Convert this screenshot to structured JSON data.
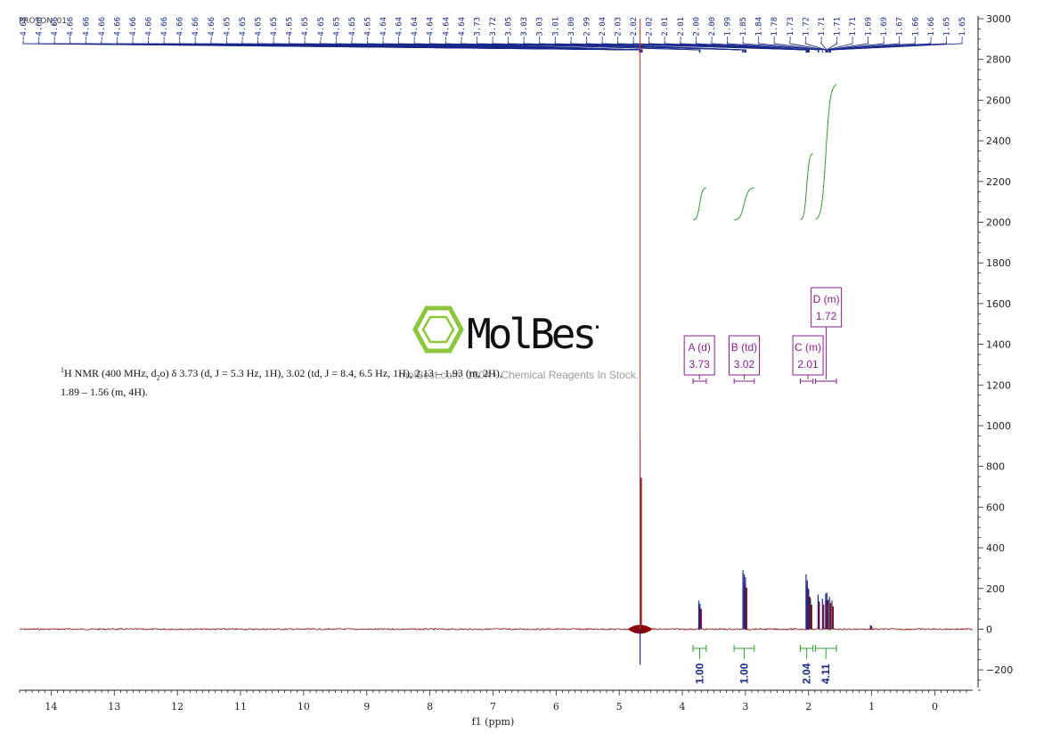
{
  "spectrum_label": "PROTON_01",
  "description": {
    "prefix": "H NMR (400 MHz, d",
    "nucleus_sup": "1",
    "solvent_sub": "2",
    "rest_line1": "o) δ 3.73 (d, J = 5.3 Hz, 1H), 3.02 (td, J = 8.4, 6.5 Hz, 1H), 2.13 – 1.93 (m, 2H),",
    "line2": "1.89 – 1.56 (m, 4H)."
  },
  "watermark": {
    "brand": "MolBest",
    "tagline": "molBest.com, 180K+ Chemical Reagents In Stock.",
    "color": "#8cc63f"
  },
  "chart_data": {
    "type": "line",
    "xlabel": "f1 (ppm)",
    "x_reversed": true,
    "xlim": [
      14.5,
      -0.6
    ],
    "ylim": [
      -300,
      3000
    ],
    "x_ticks": [
      14,
      13,
      12,
      11,
      10,
      9,
      8,
      7,
      6,
      5,
      4,
      3,
      2,
      1,
      0
    ],
    "y_ticks": [
      -200,
      0,
      200,
      400,
      600,
      800,
      1000,
      1200,
      1400,
      1600,
      1800,
      2000,
      2200,
      2400,
      2600,
      2800,
      3000
    ],
    "colors": {
      "spectrum": "#8b0000",
      "peaks": "#1a2a8a",
      "integral": "#2ca02c",
      "multiplet": "#8a1f8f",
      "solvent_line": "#c0392b"
    },
    "solvent_peak_ppm": 4.67,
    "peaks": [
      {
        "ppm": 4.67,
        "height": 930
      },
      {
        "ppm": 3.74,
        "height": 140
      },
      {
        "ppm": 3.72,
        "height": 125
      },
      {
        "ppm": 3.04,
        "height": 290
      },
      {
        "ppm": 3.02,
        "height": 270
      },
      {
        "ppm": 3.0,
        "height": 255
      },
      {
        "ppm": 2.04,
        "height": 270
      },
      {
        "ppm": 2.02,
        "height": 240
      },
      {
        "ppm": 2.0,
        "height": 200
      },
      {
        "ppm": 1.97,
        "height": 150
      },
      {
        "ppm": 1.85,
        "height": 170
      },
      {
        "ppm": 1.78,
        "height": 150
      },
      {
        "ppm": 1.73,
        "height": 175
      },
      {
        "ppm": 1.71,
        "height": 180
      },
      {
        "ppm": 1.67,
        "height": 160
      },
      {
        "ppm": 1.63,
        "height": 140
      },
      {
        "ppm": 1.02,
        "height": 20
      }
    ],
    "peak_labels": [
      "4.68",
      "4.68",
      "4.66",
      "4.66",
      "4.66",
      "4.66",
      "4.66",
      "4.66",
      "4.66",
      "4.66",
      "4.66",
      "4.66",
      "4.66",
      "4.65",
      "4.65",
      "4.65",
      "4.65",
      "4.65",
      "4.65",
      "4.65",
      "4.65",
      "4.65",
      "4.65",
      "4.64",
      "4.64",
      "4.64",
      "4.64",
      "4.64",
      "4.64",
      "3.73",
      "3.72",
      "3.05",
      "3.03",
      "3.03",
      "3.01",
      "3.00",
      "2.99",
      "2.04",
      "2.03",
      "2.02",
      "2.02",
      "2.01",
      "2.01",
      "2.00",
      "2.00",
      "1.99",
      "1.85",
      "1.84",
      "1.78",
      "1.73",
      "1.72",
      "1.71",
      "1.71",
      "1.71",
      "1.69",
      "1.69",
      "1.67",
      "1.66",
      "1.66",
      "1.65",
      "1.65"
    ],
    "multiplets": [
      {
        "name": "A (d)",
        "shift": "3.73",
        "ppm": 3.73,
        "range": [
          3.83,
          3.62
        ]
      },
      {
        "name": "B (td)",
        "shift": "3.02",
        "ppm": 3.02,
        "range": [
          3.18,
          2.86
        ]
      },
      {
        "name": "C (m)",
        "shift": "2.01",
        "ppm": 2.01,
        "range": [
          2.13,
          1.93
        ]
      },
      {
        "name": "D (m)",
        "shift": "1.72",
        "ppm": 1.72,
        "range": [
          1.89,
          1.56
        ]
      }
    ],
    "integrals": [
      {
        "value": "1.00",
        "range": [
          3.83,
          3.62
        ]
      },
      {
        "value": "1.00",
        "range": [
          3.18,
          2.86
        ]
      },
      {
        "value": "2.04",
        "range": [
          2.13,
          1.93
        ]
      },
      {
        "value": "4.11",
        "range": [
          1.89,
          1.56
        ]
      }
    ]
  }
}
